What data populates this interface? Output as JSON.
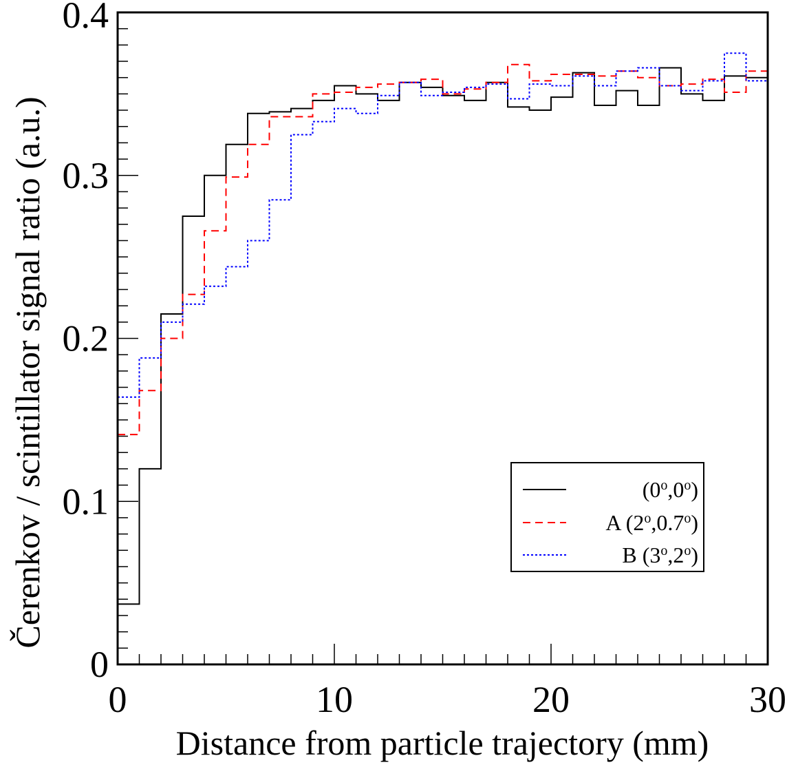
{
  "chart_data": {
    "type": "line",
    "xlabel": "Distance from particle trajectory (mm)",
    "ylabel": "Čerenkov / scintillator signal ratio (a.u.)",
    "xlim": [
      0,
      30
    ],
    "ylim": [
      0,
      0.4
    ],
    "x_ticks": [
      "0",
      "10",
      "20",
      "30"
    ],
    "y_ticks": [
      "0",
      "0.1",
      "0.2",
      "0.3",
      "0.4"
    ],
    "grid": false,
    "legend_position": "bottom-right",
    "bin_edges": [
      0,
      1,
      2,
      3,
      4,
      5,
      6,
      7,
      8,
      9,
      10,
      11,
      12,
      13,
      14,
      15,
      16,
      17,
      18,
      19,
      20,
      21,
      22,
      23,
      24,
      25,
      26,
      27,
      28,
      29,
      30
    ],
    "series": [
      {
        "label_prefix": "",
        "label_main": "(0",
        "label_sup1": "o",
        "label_mid": ",0",
        "label_sup2": "o",
        "label_end": ")",
        "color": "#000000",
        "style": "solid",
        "values": [
          0.037,
          0.12,
          0.215,
          0.275,
          0.3,
          0.319,
          0.338,
          0.339,
          0.341,
          0.346,
          0.355,
          0.35,
          0.346,
          0.357,
          0.354,
          0.349,
          0.346,
          0.357,
          0.342,
          0.34,
          0.348,
          0.363,
          0.343,
          0.352,
          0.343,
          0.366,
          0.35,
          0.346,
          0.361,
          0.36
        ]
      },
      {
        "label_prefix": "A ",
        "label_main": "(2",
        "label_sup1": "o",
        "label_mid": ",0.7",
        "label_sup2": "o",
        "label_end": ")",
        "color": "#ff0000",
        "style": "dashed",
        "values": [
          0.141,
          0.168,
          0.2,
          0.227,
          0.266,
          0.299,
          0.319,
          0.336,
          0.336,
          0.35,
          0.351,
          0.354,
          0.356,
          0.357,
          0.359,
          0.35,
          0.353,
          0.357,
          0.368,
          0.358,
          0.362,
          0.362,
          0.361,
          0.364,
          0.36,
          0.355,
          0.356,
          0.359,
          0.351,
          0.364
        ]
      },
      {
        "label_prefix": "B ",
        "label_main": "(3",
        "label_sup1": "o",
        "label_mid": ",2",
        "label_sup2": "o",
        "label_end": ")",
        "color": "#0000ff",
        "style": "dotted",
        "values": [
          0.164,
          0.188,
          0.21,
          0.221,
          0.232,
          0.244,
          0.26,
          0.285,
          0.325,
          0.333,
          0.341,
          0.338,
          0.349,
          0.357,
          0.349,
          0.351,
          0.354,
          0.356,
          0.347,
          0.356,
          0.355,
          0.361,
          0.355,
          0.364,
          0.366,
          0.355,
          0.352,
          0.358,
          0.375,
          0.358
        ]
      }
    ]
  }
}
